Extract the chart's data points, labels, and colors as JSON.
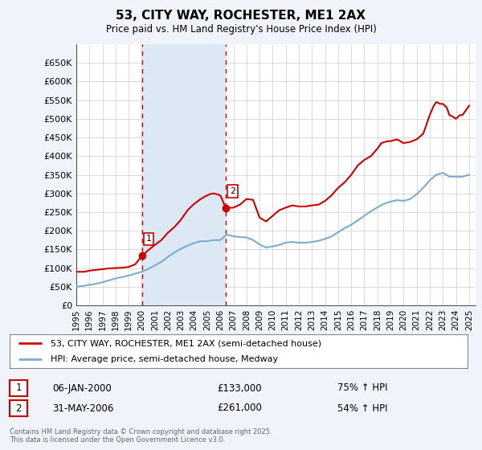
{
  "title": "53, CITY WAY, ROCHESTER, ME1 2AX",
  "subtitle": "Price paid vs. HM Land Registry's House Price Index (HPI)",
  "background_color": "#f0f4fa",
  "plot_bg_color": "#ffffff",
  "grid_color": "#cccccc",
  "ylim": [
    0,
    700000
  ],
  "yticks": [
    0,
    50000,
    100000,
    150000,
    200000,
    250000,
    300000,
    350000,
    400000,
    450000,
    500000,
    550000,
    600000,
    650000
  ],
  "ytick_labels": [
    "£0",
    "£50K",
    "£100K",
    "£150K",
    "£200K",
    "£250K",
    "£300K",
    "£350K",
    "£400K",
    "£450K",
    "£500K",
    "£550K",
    "£600K",
    "£650K"
  ],
  "xlim_start": 1995.0,
  "xlim_end": 2025.5,
  "xticks": [
    1995,
    1996,
    1997,
    1998,
    1999,
    2000,
    2001,
    2002,
    2003,
    2004,
    2005,
    2006,
    2007,
    2008,
    2009,
    2010,
    2011,
    2012,
    2013,
    2014,
    2015,
    2016,
    2017,
    2018,
    2019,
    2020,
    2021,
    2022,
    2023,
    2024,
    2025
  ],
  "legend_label_red": "53, CITY WAY, ROCHESTER, ME1 2AX (semi-detached house)",
  "legend_label_blue": "HPI: Average price, semi-detached house, Medway",
  "red_color": "#cc0000",
  "blue_color": "#7aadcf",
  "highlight_bg": "#dde8f5",
  "marker1_x": 2000.02,
  "marker1_y": 133000,
  "marker2_x": 2006.42,
  "marker2_y": 261000,
  "vline1_x": 2000.02,
  "vline2_x": 2006.42,
  "annotation1": {
    "num": "1",
    "date": "06-JAN-2000",
    "price": "£133,000",
    "pct": "75% ↑ HPI"
  },
  "annotation2": {
    "num": "2",
    "date": "31-MAY-2006",
    "price": "£261,000",
    "pct": "54% ↑ HPI"
  },
  "footer": "Contains HM Land Registry data © Crown copyright and database right 2025.\nThis data is licensed under the Open Government Licence v3.0.",
  "red_line": {
    "x": [
      1995.0,
      1995.3,
      1995.6,
      1996.0,
      1996.5,
      1997.0,
      1997.5,
      1998.0,
      1998.5,
      1999.0,
      1999.5,
      2000.02,
      2000.5,
      2001.0,
      2001.5,
      2002.0,
      2002.5,
      2003.0,
      2003.5,
      2004.0,
      2004.5,
      2005.0,
      2005.3,
      2005.5,
      2005.8,
      2006.0,
      2006.42,
      2007.0,
      2007.5,
      2008.0,
      2008.5,
      2009.0,
      2009.5,
      2010.0,
      2010.5,
      2011.0,
      2011.5,
      2012.0,
      2012.5,
      2013.0,
      2013.5,
      2014.0,
      2014.5,
      2015.0,
      2015.5,
      2016.0,
      2016.5,
      2017.0,
      2017.5,
      2018.0,
      2018.3,
      2018.8,
      2019.0,
      2019.5,
      2020.0,
      2020.5,
      2021.0,
      2021.5,
      2022.0,
      2022.3,
      2022.5,
      2022.8,
      2023.0,
      2023.3,
      2023.5,
      2023.8,
      2024.0,
      2024.3,
      2024.5,
      2024.8,
      2025.0
    ],
    "y": [
      90000,
      90000,
      90000,
      93000,
      95000,
      97000,
      99000,
      100000,
      101000,
      103000,
      110000,
      133000,
      148000,
      162000,
      175000,
      195000,
      210000,
      230000,
      255000,
      272000,
      285000,
      295000,
      299000,
      300000,
      297000,
      295000,
      261000,
      262000,
      270000,
      285000,
      283000,
      235000,
      225000,
      240000,
      255000,
      262000,
      268000,
      265000,
      265000,
      268000,
      270000,
      280000,
      295000,
      315000,
      330000,
      350000,
      375000,
      390000,
      400000,
      420000,
      435000,
      440000,
      440000,
      445000,
      435000,
      438000,
      445000,
      460000,
      510000,
      535000,
      545000,
      540000,
      540000,
      530000,
      510000,
      505000,
      500000,
      510000,
      510000,
      525000,
      535000
    ]
  },
  "blue_line": {
    "x": [
      1995.0,
      1995.5,
      1996.0,
      1996.5,
      1997.0,
      1997.5,
      1998.0,
      1998.5,
      1999.0,
      1999.5,
      2000.0,
      2000.5,
      2001.0,
      2001.5,
      2002.0,
      2002.5,
      2003.0,
      2003.5,
      2004.0,
      2004.5,
      2005.0,
      2005.5,
      2006.0,
      2006.5,
      2007.0,
      2007.5,
      2008.0,
      2008.5,
      2009.0,
      2009.5,
      2010.0,
      2010.5,
      2011.0,
      2011.5,
      2012.0,
      2012.5,
      2013.0,
      2013.5,
      2014.0,
      2014.5,
      2015.0,
      2015.5,
      2016.0,
      2016.5,
      2017.0,
      2017.5,
      2018.0,
      2018.5,
      2019.0,
      2019.5,
      2020.0,
      2020.5,
      2021.0,
      2021.5,
      2022.0,
      2022.5,
      2023.0,
      2023.5,
      2024.0,
      2024.5,
      2025.0
    ],
    "y": [
      50000,
      52000,
      55000,
      58000,
      62000,
      67000,
      72000,
      76000,
      80000,
      85000,
      90000,
      98000,
      107000,
      117000,
      130000,
      142000,
      152000,
      160000,
      167000,
      172000,
      172000,
      175000,
      175000,
      190000,
      185000,
      183000,
      182000,
      175000,
      163000,
      155000,
      158000,
      162000,
      168000,
      170000,
      168000,
      168000,
      170000,
      173000,
      178000,
      185000,
      196000,
      207000,
      216000,
      228000,
      240000,
      252000,
      263000,
      272000,
      278000,
      282000,
      280000,
      285000,
      298000,
      315000,
      335000,
      350000,
      355000,
      345000,
      345000,
      345000,
      350000
    ]
  }
}
